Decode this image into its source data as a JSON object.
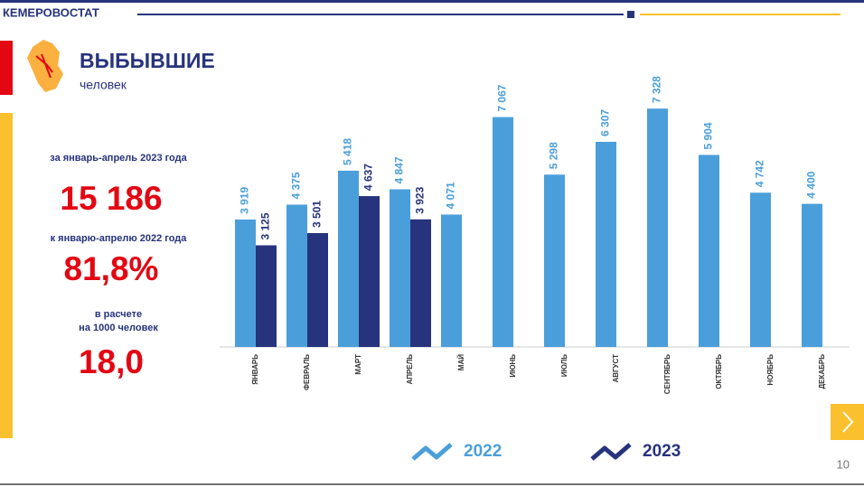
{
  "header": {
    "org": "КЕМЕРОВОСТАТ"
  },
  "title": "ВЫБЫВШИЕ",
  "subtitle": "человек",
  "stats": [
    {
      "label": [
        "за январь-апрель 2023 года"
      ],
      "value": "15 186"
    },
    {
      "label": [
        "к январю-апрелю 2022 года"
      ],
      "value": "81,8%"
    },
    {
      "label": [
        "в расчете",
        "на 1000 человек"
      ],
      "value": "18,0"
    }
  ],
  "page_number": "10",
  "chart_data": {
    "type": "bar",
    "categories": [
      "ЯНВАРЬ",
      "ФЕВРАЛЬ",
      "МАРТ",
      "АПРЕЛЬ",
      "МАЙ",
      "ИЮНЬ",
      "ИЮЛЬ",
      "АВГУСТ",
      "СЕНТЯБРЬ",
      "ОКТЯБРЬ",
      "НОЯБРЬ",
      "ДЕКАБРЬ"
    ],
    "series": [
      {
        "name": "2022",
        "color": "#4a9fdb",
        "values": [
          3919,
          4375,
          5418,
          4847,
          4071,
          7067,
          5298,
          6307,
          7328,
          5904,
          4742,
          4400
        ],
        "value_labels": [
          "3 919",
          "4 375",
          "5 418",
          "4 847",
          "4 071",
          "7 067",
          "5 298",
          "6 307",
          "7 328",
          "5 904",
          "4 742",
          "4 400"
        ]
      },
      {
        "name": "2023",
        "color": "#27337c",
        "values": [
          3125,
          3501,
          4637,
          3923,
          null,
          null,
          null,
          null,
          null,
          null,
          null,
          null
        ],
        "value_labels": [
          "3 125",
          "3 501",
          "4 637",
          "3 923",
          null,
          null,
          null,
          null,
          null,
          null,
          null,
          null
        ]
      }
    ],
    "ylim": [
      0,
      8000
    ]
  }
}
